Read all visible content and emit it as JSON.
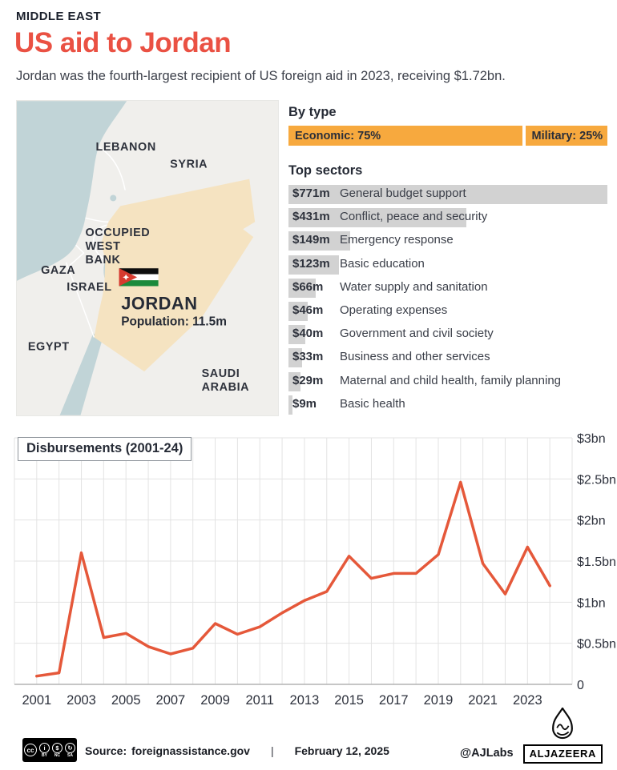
{
  "header": {
    "kicker": "MIDDLE EAST",
    "title": "US aid to Jordan",
    "subtitle": "Jordan was the fourth-largest recipient of US foreign aid in 2023, receiving $1.72bn."
  },
  "map": {
    "labels": {
      "lebanon": "LEBANON",
      "syria": "SYRIA",
      "west_bank": [
        "OCCUPIED",
        "WEST",
        "BANK"
      ],
      "gaza": "GAZA",
      "israel": "ISRAEL",
      "egypt": "EGYPT",
      "saudi_arabia": [
        "SAUDI",
        "ARABIA"
      ],
      "country": "JORDAN",
      "population": "Population: 11.5m"
    },
    "colors": {
      "sea": "#c1d4d7",
      "land": "#f0efec",
      "highlight": "#f5e3c1",
      "border": "#ffffff"
    }
  },
  "chart_data": [
    {
      "type": "bar",
      "id": "by_type",
      "title": "By type",
      "categories": [
        "Economic",
        "Military"
      ],
      "values": [
        75,
        25
      ],
      "unit": "percent",
      "bar_color": "#f7a93e",
      "labels": [
        "Economic: 75%",
        "Military: 25%"
      ]
    },
    {
      "type": "bar",
      "id": "top_sectors",
      "title": "Top sectors",
      "categories": [
        "General budget support",
        "Conflict, peace and security",
        "Emergency response",
        "Basic education",
        "Water supply and sanitation",
        "Operating expenses",
        "Government and civil society",
        "Business and other services",
        "Maternal and child health, family planning",
        "Basic health"
      ],
      "values": [
        771,
        431,
        149,
        123,
        66,
        46,
        40,
        33,
        29,
        9
      ],
      "value_labels": [
        "$771m",
        "$431m",
        "$149m",
        "$123m",
        "$66m",
        "$46m",
        "$40m",
        "$33m",
        "$29m",
        "$9m"
      ],
      "unit": "$m",
      "bar_color": "#d2d2d2"
    },
    {
      "type": "line",
      "id": "disbursements",
      "title": "Disbursements (2001-24)",
      "x": [
        2001,
        2002,
        2003,
        2004,
        2005,
        2006,
        2007,
        2008,
        2009,
        2010,
        2011,
        2012,
        2013,
        2014,
        2015,
        2016,
        2017,
        2018,
        2019,
        2020,
        2021,
        2022,
        2023,
        2024
      ],
      "values": [
        0.1,
        0.14,
        1.6,
        0.57,
        0.62,
        0.46,
        0.37,
        0.44,
        0.74,
        0.61,
        0.7,
        0.87,
        1.02,
        1.13,
        1.56,
        1.29,
        1.35,
        1.35,
        1.58,
        2.46,
        1.47,
        1.1,
        1.67,
        1.2
      ],
      "unit": "$bn",
      "ylim": [
        0,
        3
      ],
      "xlim": [
        2000,
        2025
      ],
      "y_ticks": [
        {
          "v": 3,
          "label": "$3bn"
        },
        {
          "v": 2.5,
          "label": "$2.5bn"
        },
        {
          "v": 2,
          "label": "$2bn"
        },
        {
          "v": 1.5,
          "label": "$1.5bn"
        },
        {
          "v": 1,
          "label": "$1bn"
        },
        {
          "v": 0.5,
          "label": "$0.5bn"
        },
        {
          "v": 0,
          "label": "0"
        }
      ],
      "x_tick_labels": [
        2001,
        2003,
        2005,
        2007,
        2009,
        2011,
        2013,
        2015,
        2017,
        2019,
        2021,
        2023
      ],
      "line_color": "#e5583a",
      "grid": true,
      "legend": "none"
    }
  ],
  "footer": {
    "license_cc": "cc",
    "license_marks": [
      "BY",
      "NC",
      "SA"
    ],
    "source_label": "Source:",
    "source_value": "foreignassistance.gov",
    "separator": "|",
    "date": "February 12, 2025",
    "credit": "@AJLabs",
    "brand": "ALJAZEERA"
  }
}
